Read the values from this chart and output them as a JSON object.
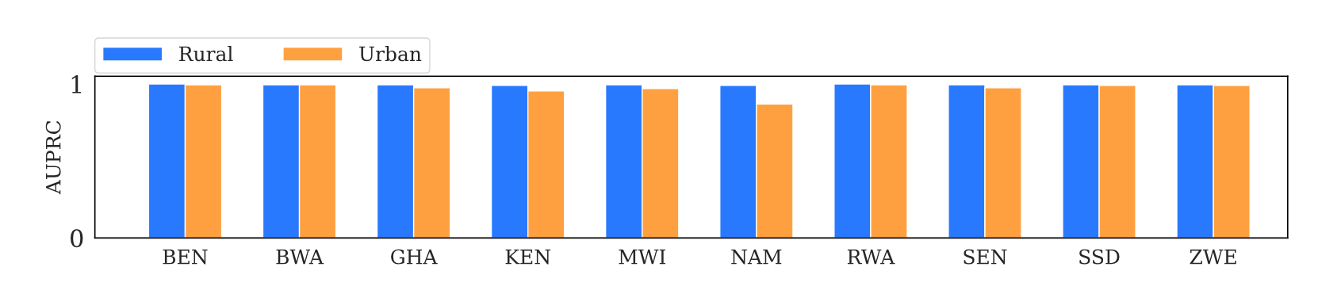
{
  "chart_data": {
    "type": "bar",
    "ylabel": "AUPRC",
    "categories": [
      "BEN",
      "BWA",
      "GHA",
      "KEN",
      "MWI",
      "NAM",
      "RWA",
      "SEN",
      "SSD",
      "ZWE"
    ],
    "series": [
      {
        "name": "Rural",
        "color": "#2979ff",
        "values": [
          1.0,
          0.995,
          0.995,
          0.99,
          0.995,
          0.99,
          1.0,
          0.995,
          0.995,
          0.995
        ]
      },
      {
        "name": "Urban",
        "color": "#ffa040",
        "values": [
          0.995,
          0.995,
          0.975,
          0.955,
          0.97,
          0.87,
          0.995,
          0.975,
          0.99,
          0.99
        ]
      }
    ],
    "ylim": [
      0,
      1.05
    ],
    "yticks": [
      0,
      1
    ],
    "legend": "top left",
    "grid": false
  }
}
